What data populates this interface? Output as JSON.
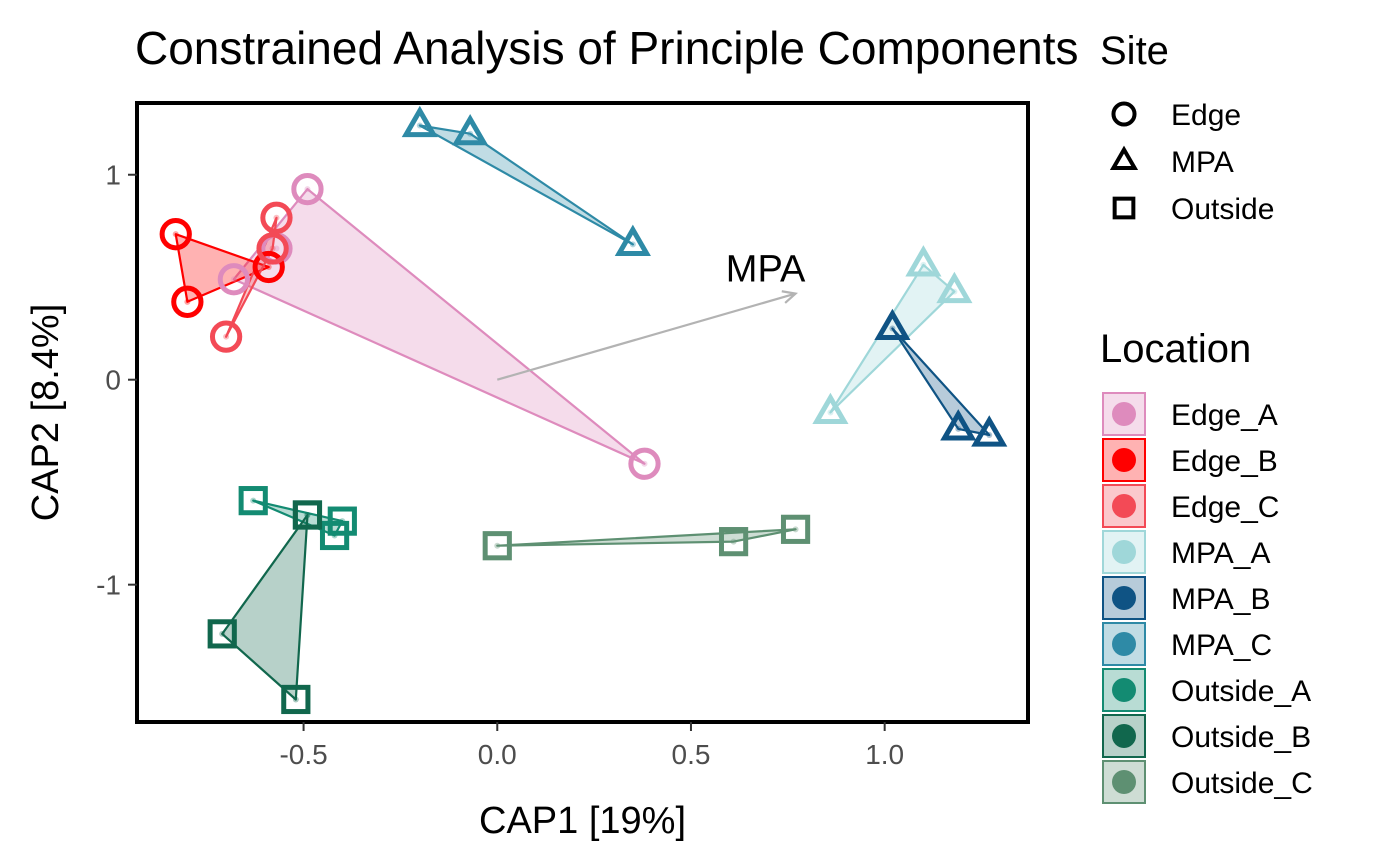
{
  "chart_data": {
    "type": "scatter",
    "title": "Constrained Analysis of Principle Components",
    "xlabel": "CAP1   [19%]",
    "ylabel": "CAP2   [8.4%]",
    "xlim": [
      -0.93,
      1.37
    ],
    "ylim": [
      -1.67,
      1.35
    ],
    "x_ticks": [
      {
        "value": -0.5,
        "label": "-0.5"
      },
      {
        "value": 0.0,
        "label": "0.0"
      },
      {
        "value": 0.5,
        "label": "0.5"
      },
      {
        "value": 1.0,
        "label": "1.0"
      }
    ],
    "y_ticks": [
      {
        "value": 1,
        "label": "1"
      },
      {
        "value": 0,
        "label": "0"
      },
      {
        "value": -1,
        "label": "-1"
      }
    ],
    "grid": false,
    "arrow": {
      "label": "MPA",
      "x0": 0.0,
      "y0": 0.0,
      "x1": 0.77,
      "y1": 0.42
    },
    "shape_legend": {
      "title": "Site",
      "items": [
        {
          "label": "Edge",
          "shape": "circle"
        },
        {
          "label": "MPA",
          "shape": "triangle"
        },
        {
          "label": "Outside",
          "shape": "square"
        }
      ]
    },
    "color_legend": {
      "title": "Location",
      "placement": "right"
    },
    "series": [
      {
        "name": "Edge_A",
        "site": "Edge",
        "color": "#de8bbd",
        "points": [
          [
            -0.49,
            0.93
          ],
          [
            -0.68,
            0.49
          ],
          [
            0.38,
            -0.41
          ],
          [
            -0.57,
            0.64
          ]
        ]
      },
      {
        "name": "Edge_B",
        "site": "Edge",
        "color": "#ff0000",
        "points": [
          [
            -0.83,
            0.71
          ],
          [
            -0.8,
            0.38
          ],
          [
            -0.59,
            0.55
          ]
        ]
      },
      {
        "name": "Edge_C",
        "site": "Edge",
        "color": "#f34a56",
        "points": [
          [
            -0.57,
            0.79
          ],
          [
            -0.7,
            0.21
          ],
          [
            -0.58,
            0.64
          ]
        ]
      },
      {
        "name": "MPA_A",
        "site": "MPA",
        "color": "#9fd7d9",
        "points": [
          [
            1.1,
            0.56
          ],
          [
            1.18,
            0.43
          ],
          [
            0.86,
            -0.16
          ]
        ]
      },
      {
        "name": "MPA_B",
        "site": "MPA",
        "color": "#0f5384",
        "points": [
          [
            1.02,
            0.25
          ],
          [
            1.19,
            -0.24
          ],
          [
            1.27,
            -0.27
          ]
        ]
      },
      {
        "name": "MPA_C",
        "site": "MPA",
        "color": "#2e8aa6",
        "points": [
          [
            -0.2,
            1.24
          ],
          [
            -0.07,
            1.2
          ],
          [
            0.35,
            0.66
          ]
        ]
      },
      {
        "name": "Outside_A",
        "site": "Outside",
        "color": "#138b72",
        "points": [
          [
            -0.63,
            -0.59
          ],
          [
            -0.42,
            -0.76
          ],
          [
            -0.4,
            -0.69
          ],
          [
            -0.49,
            -0.66
          ]
        ]
      },
      {
        "name": "Outside_B",
        "site": "Outside",
        "color": "#11674d",
        "points": [
          [
            -0.49,
            -0.66
          ],
          [
            -0.71,
            -1.24
          ],
          [
            -0.52,
            -1.56
          ]
        ]
      },
      {
        "name": "Outside_C",
        "site": "Outside",
        "color": "#5e9072",
        "points": [
          [
            0.0,
            -0.81
          ],
          [
            0.61,
            -0.79
          ],
          [
            0.77,
            -0.73
          ]
        ]
      }
    ]
  }
}
